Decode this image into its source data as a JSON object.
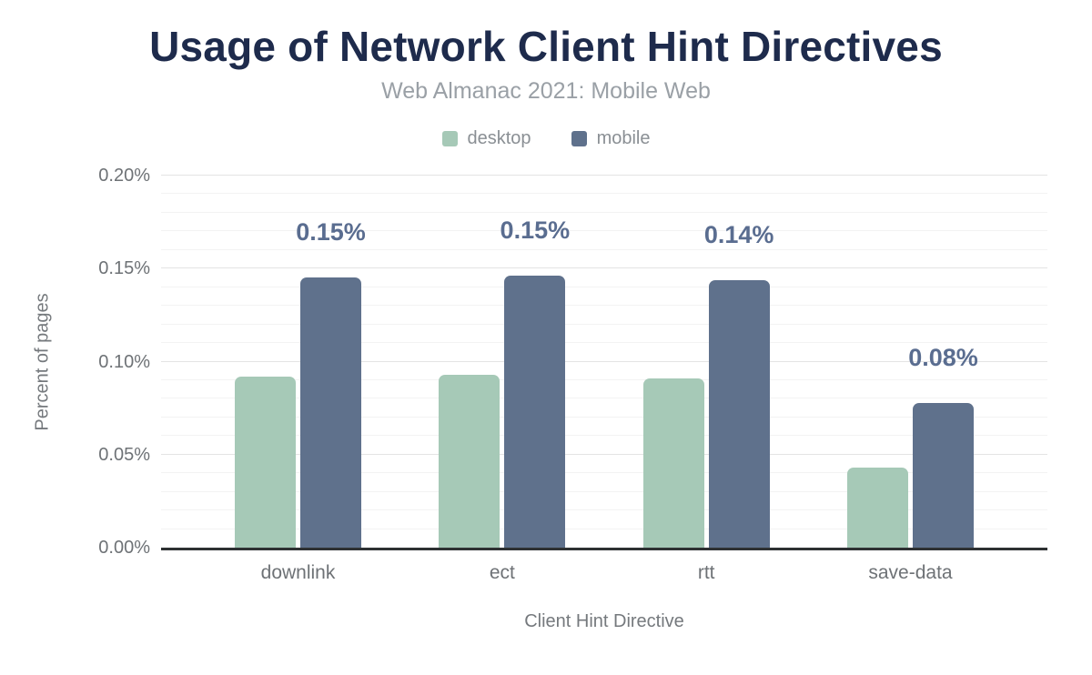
{
  "header": {
    "title": "Usage of Network Client Hint Directives",
    "subtitle": "Web Almanac 2021: Mobile Web"
  },
  "colors": {
    "title": "#1e2b4c",
    "subtitle": "#9aa0a6",
    "desktop_bar": "#a6c9b7",
    "mobile_bar": "#5f718c",
    "data_label": "#5a6d90",
    "axis_text": "#6e7276",
    "grid_major": "#e4e4e4",
    "grid_minor": "#f3f3f3",
    "axis_line": "#2e3133"
  },
  "legend": {
    "items": [
      {
        "label": "desktop",
        "color": "#a6c9b7"
      },
      {
        "label": "mobile",
        "color": "#5f718c"
      }
    ]
  },
  "chart_data": {
    "type": "bar",
    "title": "Usage of Network Client Hint Directives",
    "subtitle": "Web Almanac 2021: Mobile Web",
    "categories": [
      "downlink",
      "ect",
      "rtt",
      "save-data"
    ],
    "series": [
      {
        "name": "desktop",
        "color": "#a6c9b7",
        "values": [
          0.092,
          0.093,
          0.091,
          0.043
        ],
        "data_labels": [
          "",
          "",
          "",
          ""
        ]
      },
      {
        "name": "mobile",
        "color": "#5f718c",
        "values": [
          0.145,
          0.146,
          0.144,
          0.078
        ],
        "data_labels": [
          "0.15%",
          "0.15%",
          "0.14%",
          "0.08%"
        ]
      }
    ],
    "xlabel": "Client Hint Directive",
    "ylabel": "Percent of pages",
    "value_unit": "percent of pages",
    "ylim": [
      0,
      0.2
    ],
    "ytick_labels": [
      "0.00%",
      "0.05%",
      "0.10%",
      "0.15%",
      "0.20%"
    ],
    "ytick_values": [
      0,
      0.05,
      0.1,
      0.15,
      0.2
    ],
    "minor_grid_step": 0.01,
    "grid": true,
    "legend_position": "top"
  }
}
